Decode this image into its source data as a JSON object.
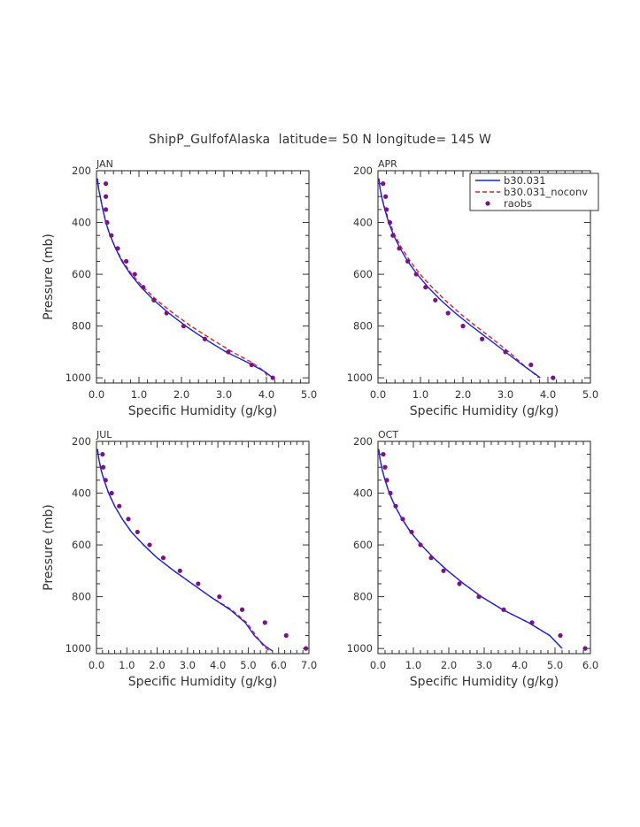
{
  "page_title": "ShipP_GulfofAlaska  latitude= 50 N longitude= 145 W",
  "legend": {
    "position": "top-right of APR panel",
    "entries": [
      {
        "name": "b30.031",
        "style": "solid",
        "color": "#1a22e6"
      },
      {
        "name": "b30.031_noconv",
        "style": "dashed",
        "color": "#e0221f"
      },
      {
        "name": "raobs",
        "style": "dot",
        "color": "#7a1484"
      }
    ]
  },
  "chart_data": [
    {
      "type": "line",
      "panel": "JAN",
      "title": "JAN",
      "xlabel": "Specific Humidity (g/kg)",
      "ylabel": "Pressure (mb)",
      "xlim": [
        0,
        5
      ],
      "xticks": [
        "0.0",
        "1.0",
        "2.0",
        "3.0",
        "4.0",
        "5.0"
      ],
      "ylim": [
        1020,
        200
      ],
      "yticks": [
        "200",
        "400",
        "600",
        "800",
        "1000"
      ],
      "series": [
        {
          "name": "b30.031",
          "style": "solid",
          "color": "#1a22e6",
          "x": [
            0.02,
            0.05,
            0.1,
            0.15,
            0.22,
            0.32,
            0.45,
            0.6,
            0.8,
            1.05,
            1.35,
            1.7,
            2.1,
            2.55,
            3.05,
            3.55,
            3.95,
            4.15
          ],
          "y": [
            230,
            270,
            310,
            350,
            400,
            450,
            500,
            550,
            600,
            650,
            700,
            750,
            800,
            850,
            900,
            940,
            975,
            1000
          ]
        },
        {
          "name": "b30.031_noconv",
          "style": "dashed",
          "color": "#e0221f",
          "x": [
            0.02,
            0.05,
            0.1,
            0.15,
            0.22,
            0.32,
            0.45,
            0.62,
            0.83,
            1.1,
            1.42,
            1.8,
            2.22,
            2.7,
            3.2,
            3.65,
            3.95,
            4.05
          ],
          "y": [
            230,
            270,
            310,
            350,
            400,
            450,
            500,
            550,
            600,
            650,
            700,
            750,
            800,
            850,
            900,
            940,
            975,
            1000
          ]
        },
        {
          "name": "raobs",
          "style": "dot",
          "color": "#7a1484",
          "x": [
            0.22,
            0.22,
            0.22,
            0.25,
            0.35,
            0.5,
            0.7,
            0.9,
            1.1,
            1.35,
            1.65,
            2.05,
            2.55,
            3.1,
            3.65,
            4.15
          ],
          "y": [
            250,
            300,
            350,
            400,
            450,
            500,
            550,
            600,
            650,
            700,
            750,
            800,
            850,
            900,
            950,
            1000
          ]
        }
      ]
    },
    {
      "type": "line",
      "panel": "APR",
      "title": "APR",
      "xlabel": "Specific Humidity (g/kg)",
      "ylabel": "",
      "xlim": [
        0,
        5
      ],
      "xticks": [
        "0.0",
        "1.0",
        "2.0",
        "3.0",
        "4.0",
        "5.0"
      ],
      "ylim": [
        1020,
        200
      ],
      "yticks": [
        "200",
        "400",
        "600",
        "800",
        "1000"
      ],
      "series": [
        {
          "name": "b30.031",
          "style": "solid",
          "color": "#1a22e6",
          "x": [
            0.02,
            0.05,
            0.1,
            0.16,
            0.25,
            0.37,
            0.52,
            0.7,
            0.92,
            1.18,
            1.48,
            1.82,
            2.2,
            2.6,
            3.0,
            3.4,
            3.7,
            3.82
          ],
          "y": [
            230,
            270,
            310,
            350,
            400,
            450,
            500,
            550,
            600,
            650,
            700,
            750,
            800,
            850,
            900,
            950,
            985,
            1000
          ]
        },
        {
          "name": "b30.031_noconv",
          "style": "dashed",
          "color": "#e0221f",
          "x": [
            0.02,
            0.05,
            0.1,
            0.17,
            0.27,
            0.4,
            0.56,
            0.76,
            0.99,
            1.27,
            1.58,
            1.92,
            2.3,
            2.7,
            3.08,
            3.42,
            3.68,
            3.78
          ],
          "y": [
            230,
            270,
            310,
            350,
            400,
            450,
            500,
            550,
            600,
            650,
            700,
            750,
            800,
            850,
            900,
            950,
            985,
            1000
          ]
        },
        {
          "name": "raobs",
          "style": "dot",
          "color": "#7a1484",
          "x": [
            0.12,
            0.18,
            0.2,
            0.28,
            0.35,
            0.5,
            0.7,
            0.9,
            1.12,
            1.35,
            1.65,
            2.0,
            2.45,
            3.0,
            3.6,
            4.12
          ],
          "y": [
            250,
            300,
            350,
            400,
            450,
            500,
            550,
            600,
            650,
            700,
            750,
            800,
            850,
            900,
            950,
            1000
          ]
        }
      ]
    },
    {
      "type": "line",
      "panel": "JUL",
      "title": "JUL",
      "xlabel": "Specific Humidity (g/kg)",
      "ylabel": "Pressure (mb)",
      "xlim": [
        0,
        7
      ],
      "xticks": [
        "0.0",
        "1.0",
        "2.0",
        "3.0",
        "4.0",
        "5.0",
        "6.0",
        "7.0"
      ],
      "ylim": [
        1020,
        200
      ],
      "yticks": [
        "200",
        "400",
        "600",
        "800",
        "1000"
      ],
      "series": [
        {
          "name": "b30.031",
          "style": "solid",
          "color": "#1a22e6",
          "x": [
            0.03,
            0.08,
            0.15,
            0.25,
            0.4,
            0.6,
            0.85,
            1.15,
            1.55,
            2.0,
            2.55,
            3.15,
            3.75,
            4.4,
            4.9,
            5.2,
            5.55,
            5.8
          ],
          "y": [
            230,
            270,
            310,
            350,
            400,
            450,
            500,
            550,
            600,
            650,
            700,
            750,
            800,
            850,
            900,
            950,
            990,
            1010
          ]
        },
        {
          "name": "b30.031_noconv",
          "style": "dashed",
          "color": "#e0221f",
          "x": [
            0.03,
            0.08,
            0.15,
            0.25,
            0.4,
            0.6,
            0.85,
            1.15,
            1.55,
            2.0,
            2.55,
            3.15,
            3.75,
            4.45,
            4.95,
            5.25,
            5.5,
            5.7
          ],
          "y": [
            230,
            270,
            310,
            350,
            400,
            450,
            500,
            550,
            600,
            650,
            700,
            750,
            800,
            850,
            900,
            950,
            990,
            1010
          ]
        },
        {
          "name": "raobs",
          "style": "dot",
          "color": "#7a1484",
          "x": [
            0.2,
            0.22,
            0.3,
            0.5,
            0.75,
            1.05,
            1.35,
            1.75,
            2.2,
            2.75,
            3.35,
            4.05,
            4.8,
            5.55,
            6.25,
            6.9
          ],
          "y": [
            250,
            300,
            350,
            400,
            450,
            500,
            550,
            600,
            650,
            700,
            750,
            800,
            850,
            900,
            950,
            1000
          ]
        }
      ]
    },
    {
      "type": "line",
      "panel": "OCT",
      "title": "OCT",
      "xlabel": "Specific Humidity (g/kg)",
      "ylabel": "",
      "xlim": [
        0,
        6
      ],
      "xticks": [
        "0.0",
        "1.0",
        "2.0",
        "3.0",
        "4.0",
        "5.0",
        "6.0"
      ],
      "ylim": [
        1020,
        200
      ],
      "yticks": [
        "200",
        "400",
        "600",
        "800",
        "1000"
      ],
      "series": [
        {
          "name": "b30.031",
          "style": "solid",
          "color": "#1a22e6",
          "x": [
            0.02,
            0.06,
            0.12,
            0.2,
            0.32,
            0.48,
            0.68,
            0.92,
            1.22,
            1.57,
            1.97,
            2.42,
            2.92,
            3.52,
            4.25,
            4.85,
            5.2
          ],
          "y": [
            230,
            270,
            310,
            350,
            400,
            450,
            500,
            550,
            600,
            650,
            700,
            750,
            800,
            850,
            900,
            950,
            1000
          ]
        },
        {
          "name": "b30.031_noconv",
          "style": "dashed",
          "color": "#e0221f",
          "x": [
            0.02,
            0.06,
            0.12,
            0.2,
            0.32,
            0.48,
            0.68,
            0.92,
            1.22,
            1.57,
            1.97,
            2.42,
            2.92,
            3.52,
            4.25,
            4.85,
            5.2
          ],
          "y": [
            230,
            270,
            310,
            350,
            400,
            450,
            500,
            550,
            600,
            650,
            700,
            750,
            800,
            850,
            900,
            950,
            1000
          ]
        },
        {
          "name": "raobs",
          "style": "dot",
          "color": "#7a1484",
          "x": [
            0.15,
            0.2,
            0.25,
            0.35,
            0.5,
            0.7,
            0.95,
            1.2,
            1.5,
            1.85,
            2.3,
            2.85,
            3.55,
            4.35,
            5.15,
            5.85
          ],
          "y": [
            250,
            300,
            350,
            400,
            450,
            500,
            550,
            600,
            650,
            700,
            750,
            800,
            850,
            900,
            950,
            1000
          ]
        }
      ]
    }
  ]
}
